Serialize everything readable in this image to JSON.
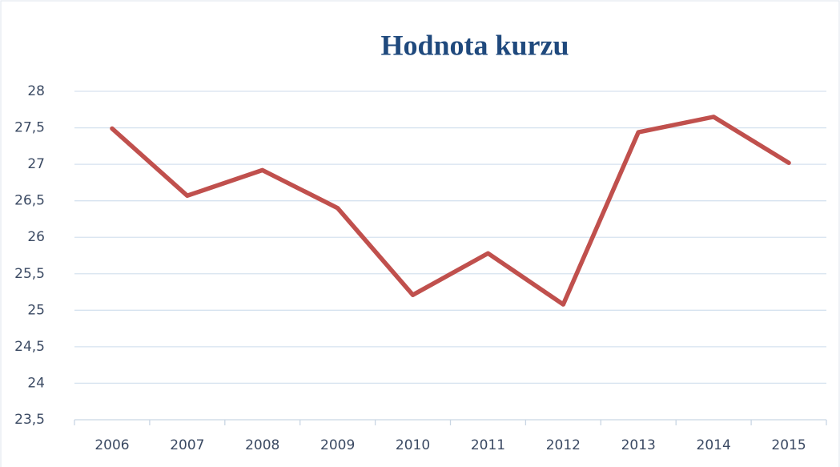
{
  "chart_data": {
    "type": "line",
    "title": "Hodnota kurzu",
    "categories": [
      "2006",
      "2007",
      "2008",
      "2009",
      "2010",
      "2011",
      "2012",
      "2013",
      "2014",
      "2015"
    ],
    "series": [
      {
        "name": "Hodnota kurzu",
        "color": "#c0504d",
        "values": [
          27.49,
          26.57,
          26.92,
          26.4,
          25.21,
          25.78,
          25.08,
          27.44,
          27.65,
          27.02
        ]
      }
    ],
    "ylim": [
      23.5,
      28
    ],
    "yticks": [
      {
        "value": 23.5,
        "label": "23,5"
      },
      24,
      {
        "value": 24.5,
        "label": "24,5"
      },
      25,
      {
        "value": 25.5,
        "label": "25,5"
      },
      26,
      {
        "value": 26.5,
        "label": "26,5"
      },
      27,
      {
        "value": 27.5,
        "label": "27,5"
      },
      28
    ],
    "grid": true
  }
}
